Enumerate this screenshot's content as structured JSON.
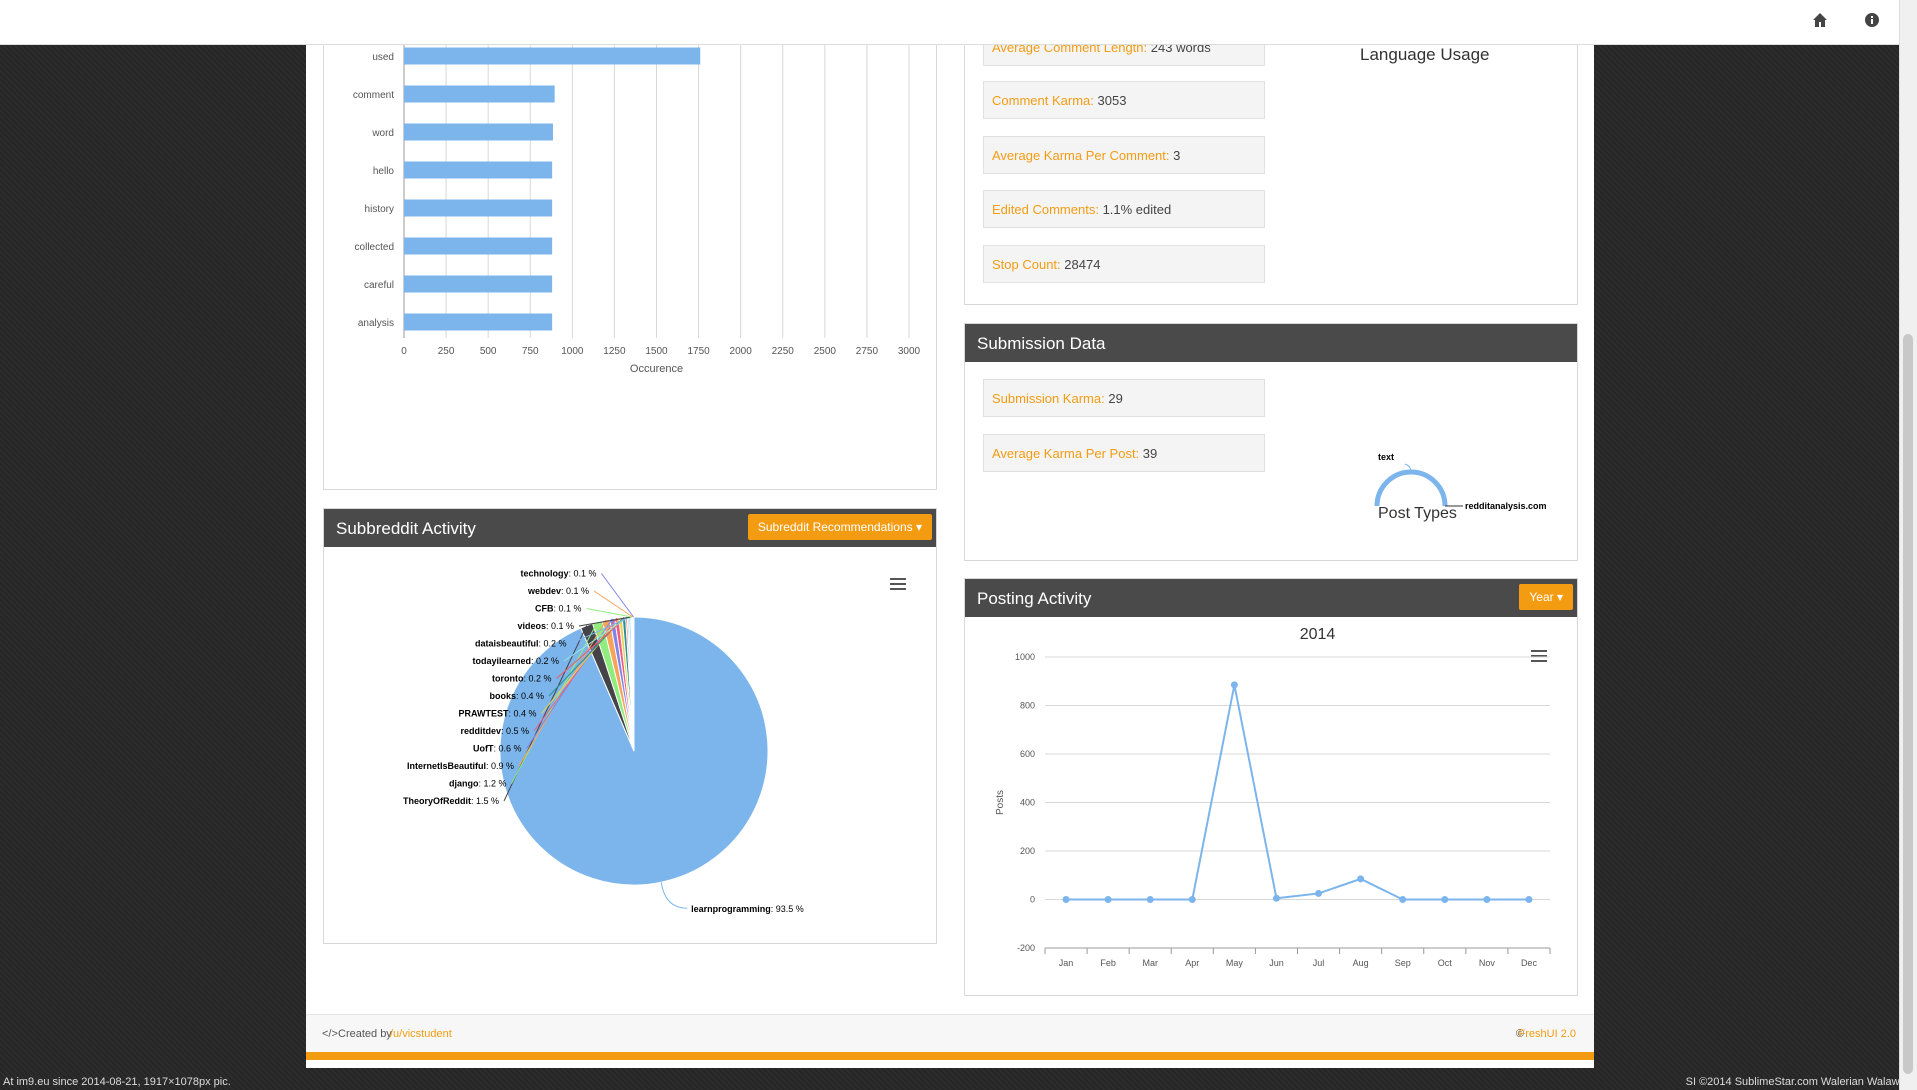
{
  "words_chart": {
    "categories": [
      "used",
      "comment",
      "word",
      "hello",
      "history",
      "collected",
      "careful",
      "analysis"
    ],
    "values": [
      1760,
      895,
      885,
      880,
      880,
      880,
      880,
      880
    ],
    "ticks": [
      "0",
      "250",
      "500",
      "750",
      "1000",
      "1250",
      "1500",
      "1750",
      "2000",
      "2250",
      "2500",
      "2750",
      "3000"
    ],
    "xlabel": "Occurence",
    "bar_color": "#7cb5ec"
  },
  "comment_stats": [
    {
      "key": "Average Comment Length:",
      "value": "243 words"
    },
    {
      "key": "Comment Karma:",
      "value": "3053"
    },
    {
      "key": "Average Karma Per Comment:",
      "value": "3"
    },
    {
      "key": "Edited Comments:",
      "value": "1.1% edited"
    },
    {
      "key": "Stop Count:",
      "value": "28474"
    }
  ],
  "language_usage_title": "Language Usage",
  "submission": {
    "title": "Submission Data",
    "stats": [
      {
        "key": "Submission Karma:",
        "value": "29"
      },
      {
        "key": "Average Karma Per Post:",
        "value": "39"
      }
    ],
    "post_types": {
      "title": "Post Types",
      "labels": [
        "text",
        "redditanalysis.com"
      ]
    }
  },
  "subreddit": {
    "title": "Subbreddit Activity",
    "button": "Subreddit Recommendations",
    "caret": "▾",
    "menu_icon": "hamburger-menu-icon"
  },
  "chart_data": [
    {
      "type": "bar",
      "categories": [
        "used",
        "comment",
        "word",
        "hello",
        "history",
        "collected",
        "careful",
        "analysis"
      ],
      "values": [
        1760,
        895,
        885,
        880,
        880,
        880,
        880,
        880
      ],
      "xlabel": "Occurence",
      "xlim": [
        0,
        3000
      ]
    },
    {
      "type": "pie",
      "labels": [
        "learnprogramming",
        "TheoryOfReddit",
        "django",
        "InternetIsBeautiful",
        "UofT",
        "redditdev",
        "PRAWTEST",
        "books",
        "toronto",
        "todayilearned",
        "dataisbeautiful",
        "videos",
        "CFB",
        "webdev",
        "technology"
      ],
      "values": [
        93.5,
        1.5,
        1.2,
        0.9,
        0.6,
        0.5,
        0.4,
        0.4,
        0.2,
        0.2,
        0.2,
        0.1,
        0.1,
        0.1,
        0.1
      ],
      "display": [
        "93.5 %",
        "1.5 %",
        "1.2 %",
        "0.9 %",
        "0.6 %",
        "0.5 %",
        "0.4 %",
        "0.4 %",
        "0.2 %",
        "0.2 %",
        "0.2 %",
        "0.1 %",
        "0.1 %",
        "0.1 %",
        "0.1 %"
      ],
      "colors": [
        "#7cb5ec",
        "#434348",
        "#90ed7d",
        "#f7a35c",
        "#8085e9",
        "#f15c80",
        "#e4d354",
        "#2b908f",
        "#f45b5b",
        "#91e8e1",
        "#7cb5ec",
        "#434348",
        "#90ed7d",
        "#f7a35c",
        "#8085e9"
      ]
    },
    {
      "type": "line",
      "title": "2014",
      "ylabel": "Posts",
      "categories": [
        "Jan",
        "Feb",
        "Mar",
        "Apr",
        "May",
        "Jun",
        "Jul",
        "Aug",
        "Sep",
        "Oct",
        "Nov",
        "Dec"
      ],
      "values": [
        0,
        0,
        0,
        0,
        885,
        5,
        25,
        85,
        0,
        0,
        0,
        0
      ],
      "ylim": [
        -200,
        1000
      ],
      "yticks": [
        "1000",
        "800",
        "600",
        "400",
        "200",
        "0",
        "-200"
      ]
    }
  ],
  "posting": {
    "title": "Posting Activity",
    "button": "Year",
    "caret": "▾"
  },
  "footer": {
    "created_by": "Created by",
    "author": "/u/vicstudent",
    "code_icon": "</>",
    "copyright": "©",
    "brand": "FreshUI 2.0"
  },
  "status_left": "At im9.eu since 2014-08-21, 1917×1078px pic.",
  "status_right": "SI ©2014 SublimeStar.com Walerian Walawski",
  "icons": {
    "home": "home-icon",
    "info": "info-icon"
  }
}
